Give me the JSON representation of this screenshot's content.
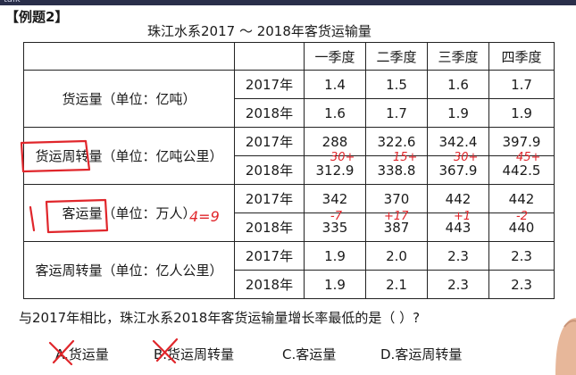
{
  "header": {
    "app_label": "talk"
  },
  "example_tag": "【例题2】",
  "table": {
    "title": "珠江水系2017 ～ 2018年客货运输量",
    "quarters": [
      "一季度",
      "二季度",
      "三季度",
      "四季度"
    ],
    "groups": [
      {
        "label": "货运量（单位：亿吨）",
        "rows": [
          {
            "year": "2017年",
            "values": [
              "1.4",
              "1.5",
              "1.6",
              "1.7"
            ]
          },
          {
            "year": "2018年",
            "values": [
              "1.6",
              "1.7",
              "1.9",
              "1.9"
            ]
          }
        ]
      },
      {
        "label": "货运周转量（单位：亿吨公里）",
        "rows": [
          {
            "year": "2017年",
            "values": [
              "288",
              "322.6",
              "342.4",
              "397.9"
            ]
          },
          {
            "year": "2018年",
            "values": [
              "312.9",
              "338.8",
              "367.9",
              "442.5"
            ]
          }
        ]
      },
      {
        "label": "客运量（单位：万人）",
        "rows": [
          {
            "year": "2017年",
            "values": [
              "342",
              "370",
              "442",
              "442"
            ]
          },
          {
            "year": "2018年",
            "values": [
              "335",
              "387",
              "443",
              "440"
            ]
          }
        ]
      },
      {
        "label": "客运周转量（单位：亿人公里）",
        "rows": [
          {
            "year": "2017年",
            "values": [
              "1.9",
              "2.0",
              "2.3",
              "2.3"
            ]
          },
          {
            "year": "2018年",
            "values": [
              "1.9",
              "2.1",
              "2.3",
              "2.3"
            ]
          }
        ]
      }
    ]
  },
  "question": "与2017年相比，珠江水系2018年客货运输量增长率最低的是（ ）?",
  "options": [
    "A.货运量",
    "B.货运周转量",
    "C.客运量",
    "D.客运周转量"
  ],
  "annotations": {
    "ink_color": "#e0262b",
    "diffs_freight_turnover": [
      "30+",
      "15+",
      "30+",
      "45+"
    ],
    "diffs_passenger": [
      "-7",
      "+17",
      "+1",
      "-2"
    ],
    "side_note": "4=9",
    "crossed_options": [
      "A",
      "B"
    ]
  }
}
